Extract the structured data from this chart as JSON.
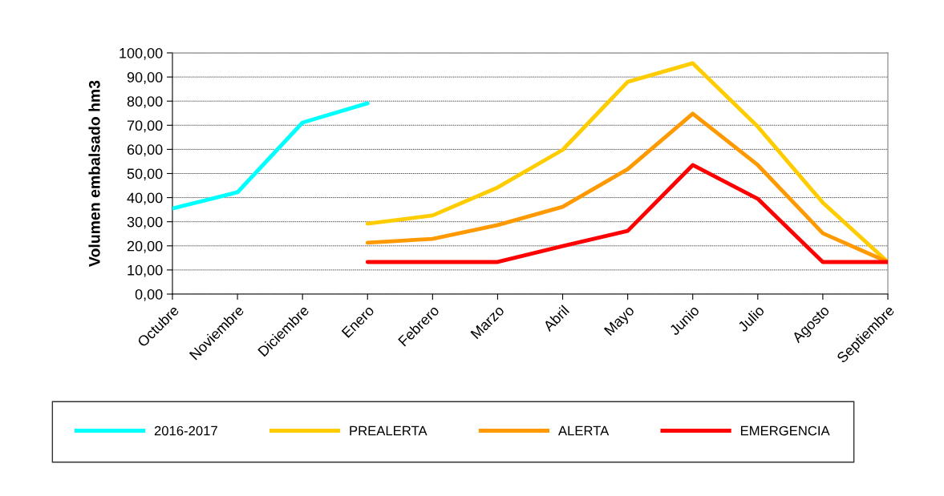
{
  "chart_data": {
    "type": "line",
    "ylabel": "Volumen embalsado hm3",
    "categories": [
      "Octubre",
      "Noviembre",
      "Diciembre",
      "Enero",
      "Febrero",
      "Marzo",
      "Abril",
      "Mayo",
      "Junio",
      "Julio",
      "Agosto",
      "Septiembre"
    ],
    "series": [
      {
        "name": "2016-2017",
        "color": "#00ffff",
        "values": [
          35.5,
          42.2,
          71.1,
          79.1,
          null,
          null,
          null,
          null,
          null,
          null,
          null,
          null
        ]
      },
      {
        "name": "PREALERTA",
        "color": "#ffcc00",
        "values": [
          null,
          null,
          null,
          29.2,
          32.6,
          44.2,
          59.8,
          88.0,
          95.7,
          69.4,
          37.9,
          13.3
        ]
      },
      {
        "name": "ALERTA",
        "color": "#ff9900",
        "values": [
          null,
          null,
          null,
          21.3,
          22.9,
          28.6,
          36.2,
          51.8,
          74.8,
          53.5,
          25.2,
          13.3
        ]
      },
      {
        "name": "EMERGENCIA",
        "color": "#ff0000",
        "values": [
          null,
          null,
          null,
          13.3,
          13.3,
          13.3,
          19.9,
          26.2,
          53.5,
          39.5,
          13.3,
          13.3
        ]
      }
    ],
    "ylim": [
      0,
      100
    ],
    "yticks": [
      {
        "value": 0,
        "label": "0,00"
      },
      {
        "value": 10,
        "label": "10,00"
      },
      {
        "value": 20,
        "label": "20,00"
      },
      {
        "value": 30,
        "label": "30,00"
      },
      {
        "value": 40,
        "label": "40,00"
      },
      {
        "value": 50,
        "label": "50,00"
      },
      {
        "value": 60,
        "label": "60,00"
      },
      {
        "value": 70,
        "label": "70,00"
      },
      {
        "value": 80,
        "label": "80,00"
      },
      {
        "value": 90,
        "label": "90,00"
      },
      {
        "value": 100,
        "label": "100,00"
      }
    ],
    "grid": "y",
    "legend": "bottom",
    "line_style": "solid",
    "marker": "none"
  }
}
